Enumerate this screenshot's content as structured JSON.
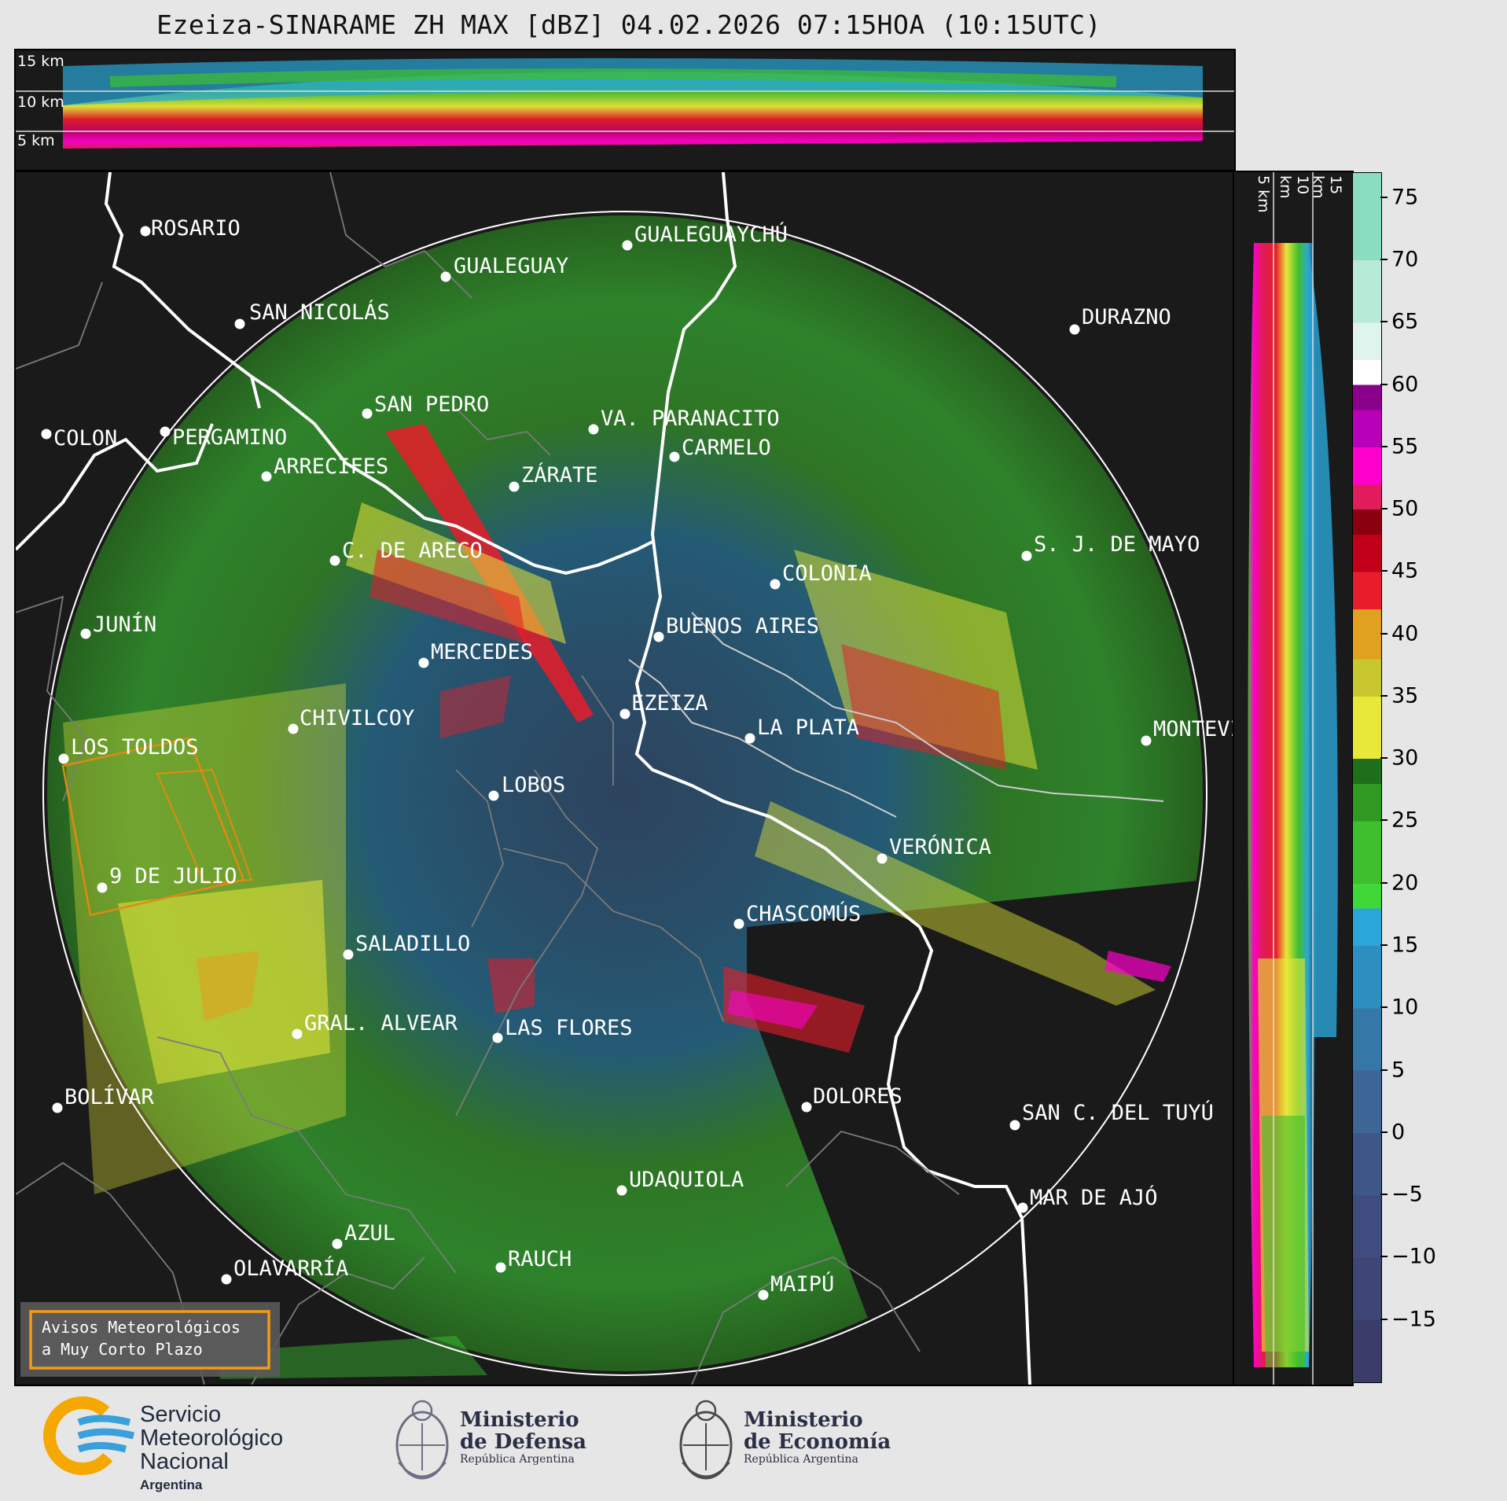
{
  "title": "Ezeiza-SINARAME ZH MAX [dBZ] 04.02.2026 07:15HOA (10:15UTC)",
  "top_panel": {
    "height_labels": [
      "15 km",
      "10 km",
      "5 km"
    ]
  },
  "side_panel": {
    "height_labels": [
      "5 km",
      "10 km",
      "15 km"
    ]
  },
  "colorbar": {
    "unit": "dBZ",
    "ticks": [
      "75",
      "70",
      "65",
      "60",
      "55",
      "50",
      "45",
      "40",
      "35",
      "30",
      "25",
      "20",
      "15",
      "10",
      "5",
      "0",
      "−5",
      "−10",
      "−15"
    ],
    "bands": [
      {
        "from": -20,
        "to": -15,
        "color": "#3a3d6a"
      },
      {
        "from": -15,
        "to": -10,
        "color": "#3f4575"
      },
      {
        "from": -10,
        "to": -5,
        "color": "#404c80"
      },
      {
        "from": -5,
        "to": 0,
        "color": "#3f5688"
      },
      {
        "from": 0,
        "to": 5,
        "color": "#3d6596"
      },
      {
        "from": 5,
        "to": 10,
        "color": "#3578a8"
      },
      {
        "from": 10,
        "to": 15,
        "color": "#2c8fc0"
      },
      {
        "from": 15,
        "to": 18,
        "color": "#2aa6d8"
      },
      {
        "from": 18,
        "to": 20,
        "color": "#3fd838"
      },
      {
        "from": 20,
        "to": 25,
        "color": "#3fbf2e"
      },
      {
        "from": 25,
        "to": 28,
        "color": "#2f9a22"
      },
      {
        "from": 28,
        "to": 30,
        "color": "#1f6e1a"
      },
      {
        "from": 30,
        "to": 35,
        "color": "#e8e83a"
      },
      {
        "from": 35,
        "to": 38,
        "color": "#c8c82e"
      },
      {
        "from": 38,
        "to": 42,
        "color": "#e0a020"
      },
      {
        "from": 42,
        "to": 45,
        "color": "#e81c2a"
      },
      {
        "from": 45,
        "to": 48,
        "color": "#c00018"
      },
      {
        "from": 48,
        "to": 50,
        "color": "#8a0010"
      },
      {
        "from": 50,
        "to": 52,
        "color": "#e01c5c"
      },
      {
        "from": 52,
        "to": 55,
        "color": "#ff00cc"
      },
      {
        "from": 55,
        "to": 58,
        "color": "#b800b8"
      },
      {
        "from": 58,
        "to": 60,
        "color": "#8a008a"
      },
      {
        "from": 60,
        "to": 62,
        "color": "#ffffff"
      },
      {
        "from": 62,
        "to": 65,
        "color": "#e0f4ee"
      },
      {
        "from": 65,
        "to": 70,
        "color": "#b8ead8"
      },
      {
        "from": 70,
        "to": 77,
        "color": "#8addc0"
      }
    ]
  },
  "cities": [
    {
      "name": "ROSARIO"
    },
    {
      "name": "GUALEGUAYCHÚ"
    },
    {
      "name": "GUALEGUAY"
    },
    {
      "name": "SAN NICOLÁS"
    },
    {
      "name": "DURAZNO"
    },
    {
      "name": "SAN PEDRO"
    },
    {
      "name": "VA. PARANACITO"
    },
    {
      "name": "COLON"
    },
    {
      "name": "PERGAMINO"
    },
    {
      "name": "CARMELO"
    },
    {
      "name": "ARRECIFES"
    },
    {
      "name": "ZÁRATE"
    },
    {
      "name": "C. DE ARECO"
    },
    {
      "name": "S. J. DE MAYO"
    },
    {
      "name": "COLONIA"
    },
    {
      "name": "JUNÍN"
    },
    {
      "name": "BUENOS AIRES"
    },
    {
      "name": "MERCEDES"
    },
    {
      "name": "EZEIZA"
    },
    {
      "name": "CHIVILCOY"
    },
    {
      "name": "LA PLATA"
    },
    {
      "name": "MONTEVIDEO"
    },
    {
      "name": "LOS TOLDOS"
    },
    {
      "name": "LOBOS"
    },
    {
      "name": "VERÓNICA"
    },
    {
      "name": "9 DE JULIO"
    },
    {
      "name": "CHASCOMÚS"
    },
    {
      "name": "SALADILLO"
    },
    {
      "name": "GRAL. ALVEAR"
    },
    {
      "name": "LAS FLORES"
    },
    {
      "name": "BOLÍVAR"
    },
    {
      "name": "DOLORES"
    },
    {
      "name": "SAN C. DEL TUYÚ"
    },
    {
      "name": "UDAQUIOLA"
    },
    {
      "name": "MAR DE AJÓ"
    },
    {
      "name": "AZUL"
    },
    {
      "name": "RAUCH"
    },
    {
      "name": "OLAVARRÍA"
    },
    {
      "name": "MAIPÚ"
    }
  ],
  "warning_box": {
    "line1": "Avisos Meteorológicos",
    "line2": "a Muy Corto Plazo"
  },
  "logos": {
    "smn": {
      "line1": "Servicio",
      "line2": "Meteorológico",
      "line3": "Nacional",
      "line4": "Argentina"
    },
    "defensa": {
      "line1": "Ministerio",
      "line2": "de Defensa",
      "line3": "República Argentina"
    },
    "economia": {
      "line1": "Ministerio",
      "line2": "de Economía",
      "line3": "República Argentina"
    }
  }
}
